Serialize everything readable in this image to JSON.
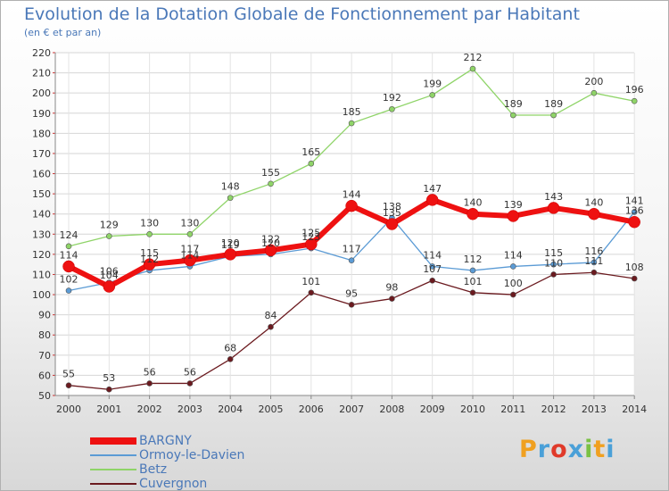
{
  "header": {
    "title": "Evolution de la Dotation Globale de Fonctionnement par Habitant",
    "subtitle": "(en € et par an)"
  },
  "logo": {
    "text": "Proxiti",
    "colors": [
      "#f0a020",
      "#4aa0d8",
      "#e03a2a",
      "#4aa0d8",
      "#7ac143",
      "#f0a020",
      "#4aa0d8"
    ]
  },
  "chart_data": {
    "type": "line",
    "title": "Evolution de la Dotation Globale de Fonctionnement par Habitant",
    "subtitle": "(en € et par an)",
    "x": [
      "2000",
      "2001",
      "2002",
      "2003",
      "2004",
      "2005",
      "2006",
      "2007",
      "2008",
      "2009",
      "2010",
      "2011",
      "2012",
      "2013",
      "2014"
    ],
    "ylim": [
      50,
      220
    ],
    "yticks": [
      50,
      60,
      70,
      80,
      90,
      100,
      110,
      120,
      130,
      140,
      150,
      160,
      170,
      180,
      190,
      200,
      210,
      220
    ],
    "grid": true,
    "legend_position": "bottom-left",
    "series": [
      {
        "name": "BARGNY",
        "color": "#ee1111",
        "values": [
          114,
          104,
          115,
          117,
          120,
          122,
          125,
          144,
          135,
          147,
          140,
          139,
          143,
          140,
          136
        ]
      },
      {
        "name": "Ormoy-le-Davien",
        "color": "#5b9bd5",
        "values": [
          102,
          106,
          112,
          114,
          119,
          120,
          123,
          117,
          138,
          114,
          112,
          114,
          115,
          116,
          141
        ]
      },
      {
        "name": "Betz",
        "color": "#8fd468",
        "values": [
          124,
          129,
          130,
          130,
          148,
          155,
          165,
          185,
          192,
          199,
          212,
          189,
          189,
          200,
          196
        ]
      },
      {
        "name": "Cuvergnon",
        "color": "#6b1a1f",
        "values": [
          55,
          53,
          56,
          56,
          68,
          84,
          101,
          95,
          98,
          107,
          101,
          100,
          110,
          111,
          108
        ]
      }
    ],
    "point_labels": {
      "BARGNY": [
        "114",
        "104",
        "115",
        "117",
        "120",
        "122",
        "125",
        "144",
        "135",
        "147",
        "140",
        "139",
        "143",
        "140",
        "136"
      ],
      "Ormoy-le-Davien": [
        "102",
        "106",
        "112",
        "114",
        "119",
        "120",
        "123",
        "117",
        "138",
        "114",
        "112",
        "114",
        "115",
        "116",
        "141"
      ],
      "Betz": [
        "124",
        "129",
        "130",
        "130",
        "148",
        "155",
        "165",
        "185",
        "192",
        "199",
        "212",
        "189",
        "189",
        "200",
        "196"
      ],
      "Cuvergnon": [
        "55",
        "53",
        "56",
        "56",
        "68",
        "84",
        "101",
        "95",
        "98",
        "107",
        "101",
        "100",
        "110",
        "111",
        "108"
      ]
    }
  }
}
